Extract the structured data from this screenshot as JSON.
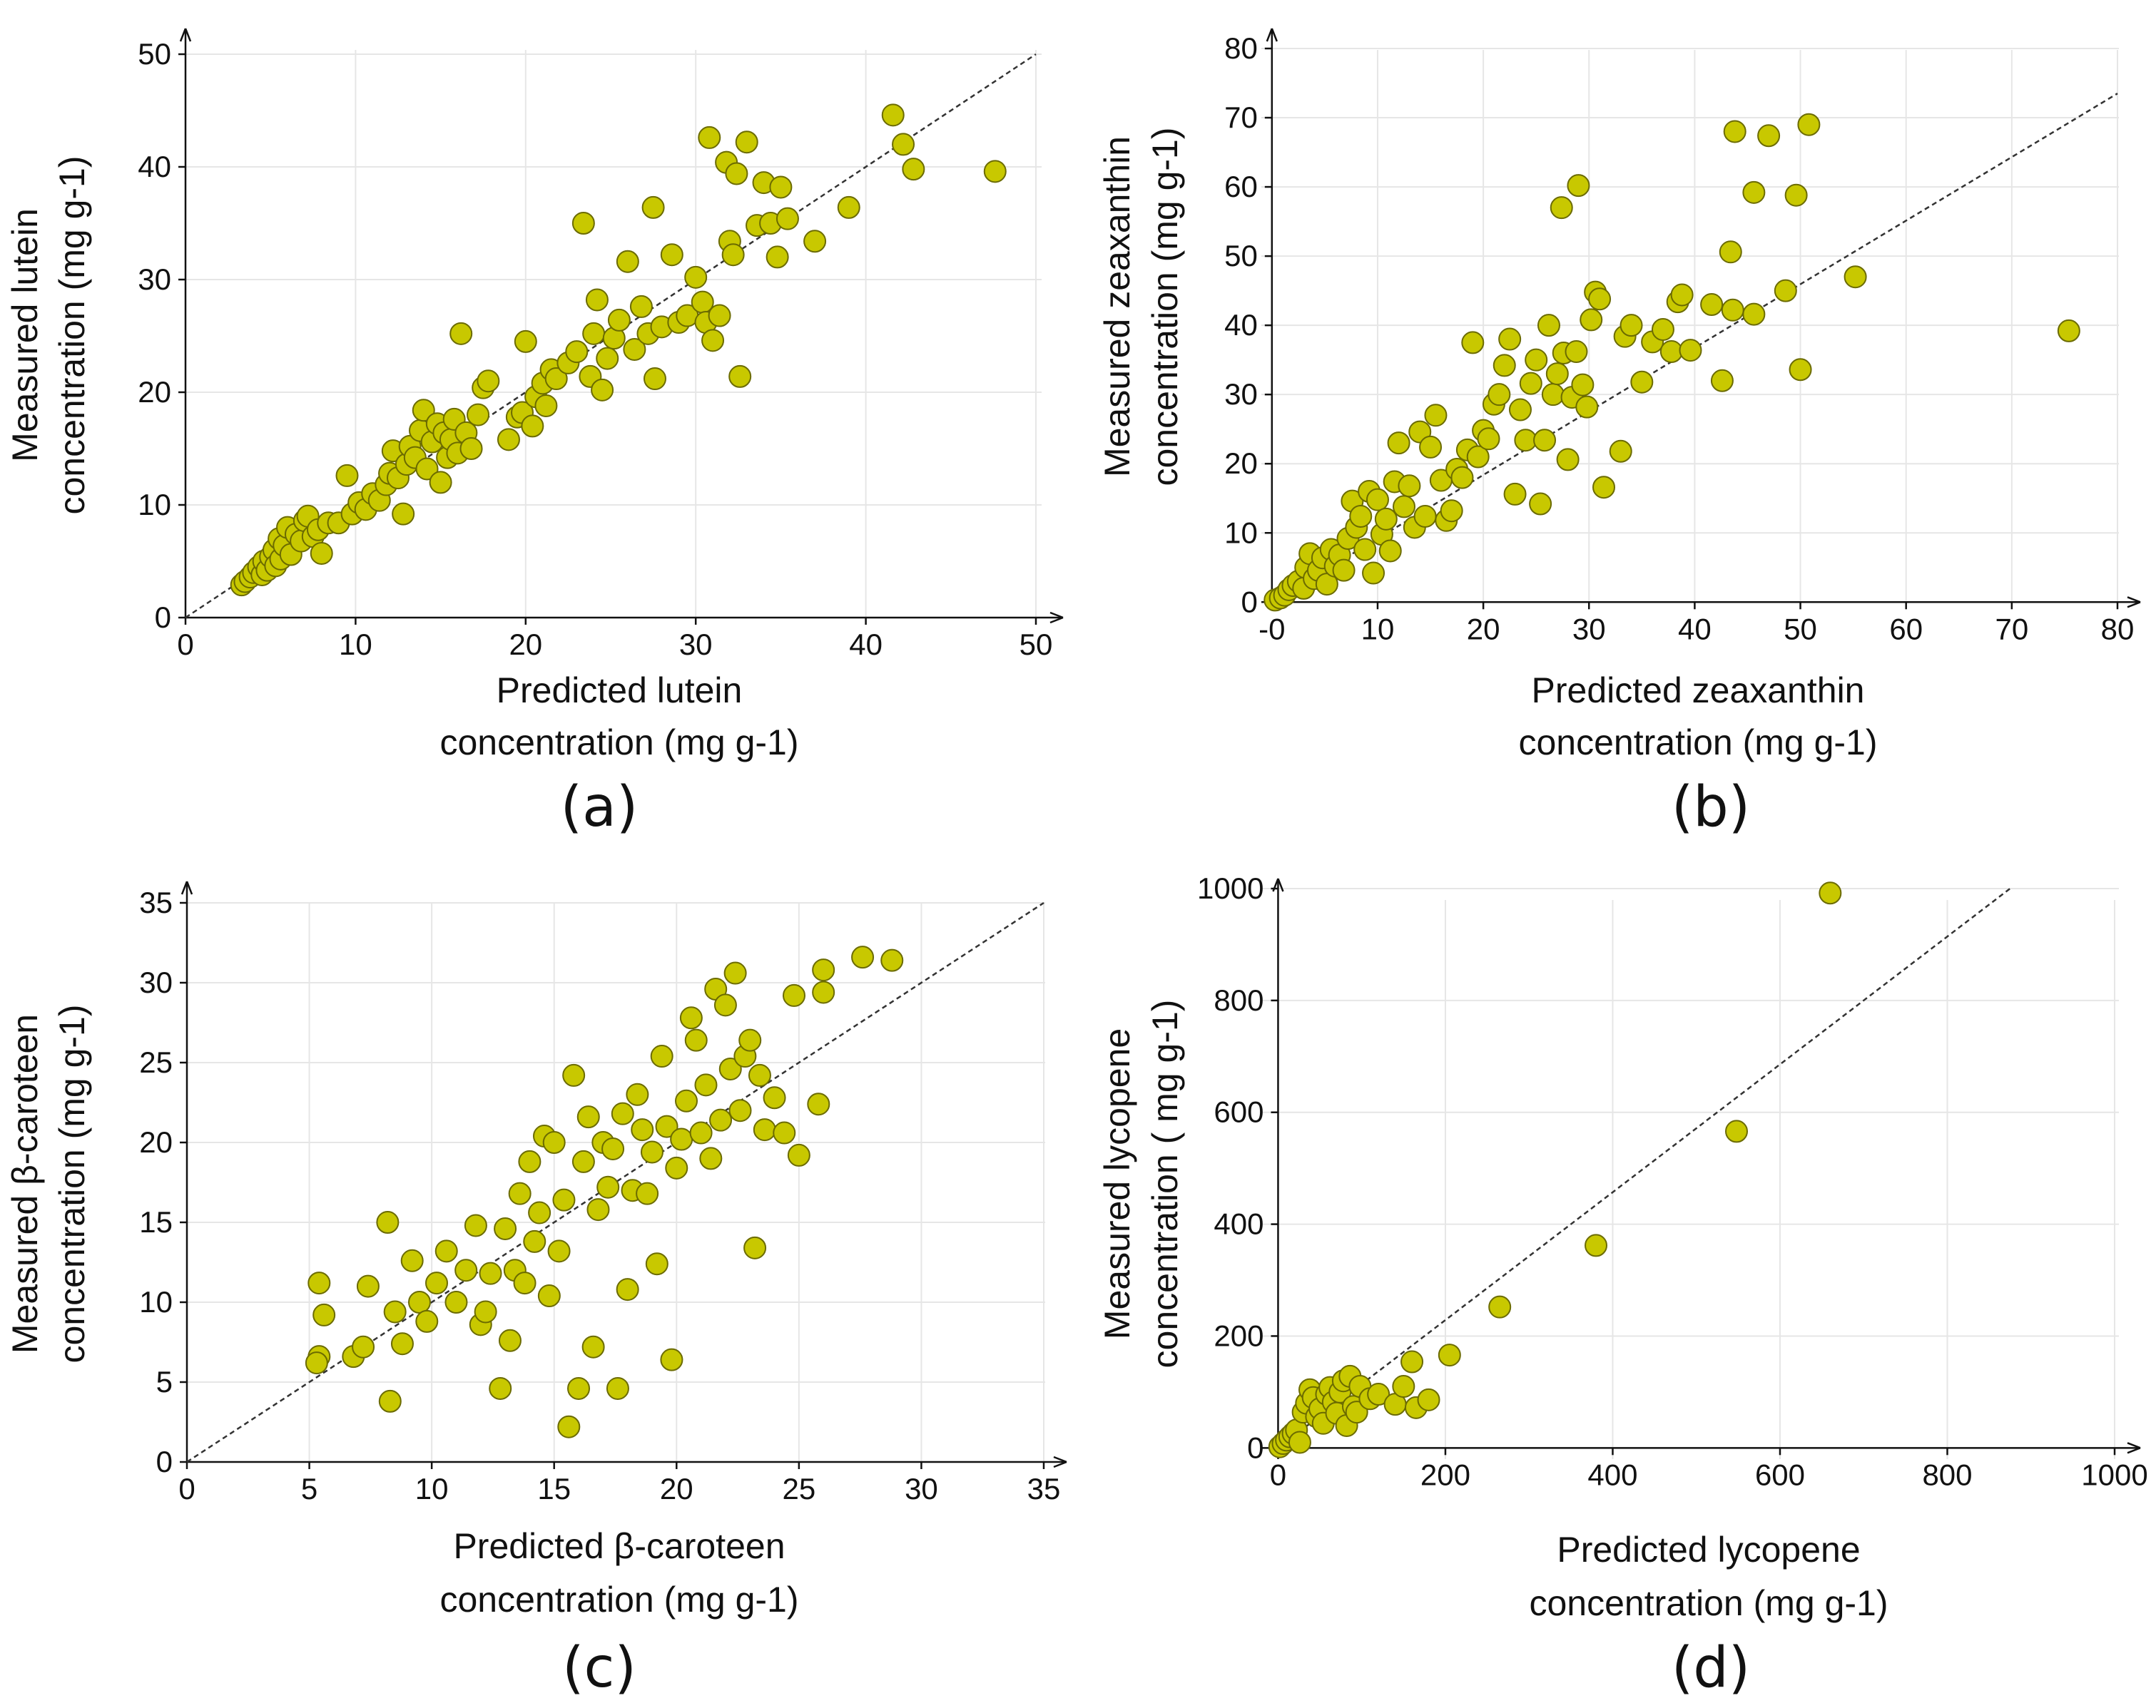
{
  "chart_data": [
    {
      "type": "scatter",
      "panel_label": "(a)",
      "xlabel": "Predicted lutein",
      "xlabel_line2": "concentration (mg g-1)",
      "ylabel": "Measured lutein",
      "ylabel_line2": "concentration (mg g-1)",
      "xlim": [
        0,
        50
      ],
      "ylim": [
        0,
        50
      ],
      "xticks": [
        0,
        10,
        20,
        30,
        40,
        50
      ],
      "yticks": [
        0,
        10,
        20,
        30,
        40,
        50
      ],
      "grid": true,
      "marker_color": "#c8c800",
      "fit_line": [
        [
          0,
          0
        ],
        [
          50,
          50
        ]
      ],
      "points": [
        [
          3.3,
          2.9
        ],
        [
          3.5,
          3.2
        ],
        [
          3.8,
          3.6
        ],
        [
          4,
          4
        ],
        [
          4.3,
          4.5
        ],
        [
          4.5,
          3.8
        ],
        [
          4.6,
          5
        ],
        [
          4.8,
          4.2
        ],
        [
          5,
          5.4
        ],
        [
          5.2,
          6
        ],
        [
          5.3,
          4.6
        ],
        [
          5.5,
          7
        ],
        [
          5.6,
          5.2
        ],
        [
          5.8,
          6.4
        ],
        [
          6,
          8
        ],
        [
          6.2,
          5.6
        ],
        [
          6.5,
          7.4
        ],
        [
          6.8,
          6.8
        ],
        [
          7,
          8.6
        ],
        [
          7.2,
          9
        ],
        [
          7.5,
          7.2
        ],
        [
          7.8,
          7.8
        ],
        [
          8,
          5.7
        ],
        [
          8.4,
          8.4
        ],
        [
          9,
          8.4
        ],
        [
          9.5,
          12.6
        ],
        [
          9.8,
          9.2
        ],
        [
          10.2,
          10.2
        ],
        [
          10.6,
          9.6
        ],
        [
          11,
          11
        ],
        [
          11.4,
          10.4
        ],
        [
          11.8,
          11.8
        ],
        [
          12,
          12.8
        ],
        [
          12.2,
          14.8
        ],
        [
          12.5,
          12.4
        ],
        [
          12.8,
          9.2
        ],
        [
          13,
          13.6
        ],
        [
          13.2,
          15.2
        ],
        [
          13.5,
          14.2
        ],
        [
          13.8,
          16.6
        ],
        [
          14,
          18.4
        ],
        [
          14.2,
          13.2
        ],
        [
          14.5,
          15.6
        ],
        [
          14.8,
          17.2
        ],
        [
          15,
          12
        ],
        [
          15.2,
          16.4
        ],
        [
          15.4,
          14.2
        ],
        [
          15.6,
          15.8
        ],
        [
          15.8,
          17.6
        ],
        [
          16,
          14.6
        ],
        [
          16.2,
          25.2
        ],
        [
          16.5,
          16.4
        ],
        [
          16.8,
          15
        ],
        [
          17.2,
          18
        ],
        [
          17.5,
          20.4
        ],
        [
          17.8,
          21
        ],
        [
          19,
          15.8
        ],
        [
          19.5,
          17.8
        ],
        [
          19.8,
          18.2
        ],
        [
          20,
          24.5
        ],
        [
          20.4,
          17
        ],
        [
          20.6,
          19.6
        ],
        [
          21,
          20.8
        ],
        [
          21.2,
          18.8
        ],
        [
          21.5,
          22
        ],
        [
          21.8,
          21.2
        ],
        [
          22.5,
          22.6
        ],
        [
          23,
          23.6
        ],
        [
          23.4,
          35
        ],
        [
          23.8,
          21.4
        ],
        [
          24,
          25.2
        ],
        [
          24.2,
          28.2
        ],
        [
          24.5,
          20.2
        ],
        [
          24.8,
          23
        ],
        [
          25.2,
          24.8
        ],
        [
          25.5,
          26.4
        ],
        [
          26,
          31.6
        ],
        [
          26.4,
          23.8
        ],
        [
          26.8,
          27.6
        ],
        [
          27.2,
          25.2
        ],
        [
          27.5,
          36.4
        ],
        [
          27.6,
          21.2
        ],
        [
          28,
          25.8
        ],
        [
          28.6,
          32.2
        ],
        [
          29,
          26.2
        ],
        [
          29.5,
          26.8
        ],
        [
          30,
          30.2
        ],
        [
          30.4,
          28
        ],
        [
          30.6,
          26.2
        ],
        [
          30.8,
          42.6
        ],
        [
          31,
          24.6
        ],
        [
          31.4,
          26.8
        ],
        [
          31.8,
          40.4
        ],
        [
          32,
          33.4
        ],
        [
          32.2,
          32.2
        ],
        [
          32.4,
          39.4
        ],
        [
          32.6,
          21.4
        ],
        [
          33,
          42.2
        ],
        [
          33.6,
          34.8
        ],
        [
          34,
          38.6
        ],
        [
          34.4,
          35
        ],
        [
          34.8,
          32
        ],
        [
          35,
          38.2
        ],
        [
          35.4,
          35.4
        ],
        [
          37,
          33.4
        ],
        [
          39,
          36.4
        ],
        [
          41.6,
          44.6
        ],
        [
          42.2,
          42
        ],
        [
          42.8,
          39.8
        ],
        [
          47.6,
          39.6
        ]
      ]
    },
    {
      "type": "scatter",
      "panel_label": "(b)",
      "xlabel": "Predicted zeaxanthin",
      "xlabel_line2": "concentration (mg g-1)",
      "ylabel": "Measured zeaxanthin",
      "ylabel_line2": "concentration (mg g-1)",
      "xlim": [
        -1,
        80
      ],
      "ylim": [
        -1,
        80
      ],
      "xticks": [
        0,
        10,
        20,
        30,
        40,
        50,
        60,
        70,
        80
      ],
      "xtick_labels": [
        "-0",
        "10",
        "20",
        "30",
        "40",
        "50",
        "60",
        "70",
        "80"
      ],
      "yticks": [
        0,
        10,
        20,
        30,
        40,
        50,
        60,
        70,
        80
      ],
      "grid": true,
      "marker_color": "#c8c800",
      "fit_line": [
        [
          0,
          0
        ],
        [
          80,
          73.5
        ]
      ],
      "points": [
        [
          0.3,
          0.3
        ],
        [
          0.8,
          0.6
        ],
        [
          1.2,
          1
        ],
        [
          1.6,
          1.8
        ],
        [
          2,
          2.4
        ],
        [
          2.5,
          3
        ],
        [
          3,
          2
        ],
        [
          3.2,
          5
        ],
        [
          3.6,
          7
        ],
        [
          4,
          3.4
        ],
        [
          4.4,
          4.6
        ],
        [
          4.8,
          6.4
        ],
        [
          5.2,
          2.6
        ],
        [
          5.6,
          7.6
        ],
        [
          6,
          5.2
        ],
        [
          6.4,
          6.8
        ],
        [
          6.8,
          4.6
        ],
        [
          7.2,
          9.2
        ],
        [
          7.6,
          14.6
        ],
        [
          8,
          10.8
        ],
        [
          8.4,
          12.4
        ],
        [
          8.8,
          7.6
        ],
        [
          9.2,
          16
        ],
        [
          9.6,
          4.2
        ],
        [
          10,
          14.8
        ],
        [
          10.4,
          9.8
        ],
        [
          10.8,
          12
        ],
        [
          11.2,
          7.4
        ],
        [
          11.6,
          17.4
        ],
        [
          12,
          23
        ],
        [
          12.5,
          13.8
        ],
        [
          13,
          16.8
        ],
        [
          13.5,
          10.8
        ],
        [
          14,
          24.6
        ],
        [
          14.5,
          12.4
        ],
        [
          15,
          22.4
        ],
        [
          15.5,
          27
        ],
        [
          16,
          17.6
        ],
        [
          16.5,
          11.8
        ],
        [
          17,
          13.2
        ],
        [
          17.5,
          19.2
        ],
        [
          18,
          18
        ],
        [
          18.5,
          22
        ],
        [
          19,
          37.5
        ],
        [
          19.5,
          21
        ],
        [
          20,
          24.8
        ],
        [
          20.5,
          23.6
        ],
        [
          21,
          28.6
        ],
        [
          21.5,
          30
        ],
        [
          22,
          34.2
        ],
        [
          22.5,
          38
        ],
        [
          23,
          15.6
        ],
        [
          23.5,
          27.8
        ],
        [
          24,
          23.4
        ],
        [
          24.5,
          31.6
        ],
        [
          25,
          35
        ],
        [
          25.4,
          14.2
        ],
        [
          25.8,
          23.4
        ],
        [
          26.2,
          40
        ],
        [
          26.6,
          30
        ],
        [
          27,
          33
        ],
        [
          27.4,
          57
        ],
        [
          27.6,
          36
        ],
        [
          28,
          20.6
        ],
        [
          28.4,
          29.6
        ],
        [
          28.8,
          36.2
        ],
        [
          29,
          60.2
        ],
        [
          29.4,
          31.4
        ],
        [
          29.8,
          28.2
        ],
        [
          30.2,
          40.8
        ],
        [
          30.6,
          44.8
        ],
        [
          31,
          43.8
        ],
        [
          31.4,
          16.6
        ],
        [
          33,
          21.8
        ],
        [
          33.4,
          38.4
        ],
        [
          34,
          40
        ],
        [
          35,
          31.8
        ],
        [
          36,
          37.6
        ],
        [
          37,
          39.4
        ],
        [
          37.8,
          36.2
        ],
        [
          38.4,
          43.4
        ],
        [
          38.8,
          44.4
        ],
        [
          39.6,
          36.4
        ],
        [
          41.6,
          43
        ],
        [
          42.6,
          32
        ],
        [
          43.4,
          50.6
        ],
        [
          43.6,
          42.2
        ],
        [
          45.6,
          41.6
        ],
        [
          45.6,
          59.2
        ],
        [
          43.8,
          68
        ],
        [
          47,
          67.4
        ],
        [
          48.6,
          45
        ],
        [
          49.6,
          58.8
        ],
        [
          50,
          33.6
        ],
        [
          50.8,
          69
        ],
        [
          55.2,
          47
        ],
        [
          75.4,
          39.2
        ]
      ]
    },
    {
      "type": "scatter",
      "panel_label": "(c)",
      "xlabel": "Predicted β-caroteen",
      "xlabel_line2": "concentration (mg g-1)",
      "ylabel": "Measured β-caroteen",
      "ylabel_line2": "concentration (mg g-1)",
      "xlim": [
        0,
        35
      ],
      "ylim": [
        0,
        35
      ],
      "xticks": [
        0,
        5,
        10,
        15,
        20,
        25,
        30,
        35
      ],
      "yticks": [
        0,
        5,
        10,
        15,
        20,
        25,
        30,
        35
      ],
      "grid": true,
      "marker_color": "#c8c800",
      "fit_line": [
        [
          0,
          0
        ],
        [
          35,
          35
        ]
      ],
      "points": [
        [
          5.4,
          11.2
        ],
        [
          5.6,
          9.2
        ],
        [
          5.4,
          6.6
        ],
        [
          5.3,
          6.2
        ],
        [
          6.8,
          6.6
        ],
        [
          7.2,
          7.2
        ],
        [
          7.4,
          11
        ],
        [
          8.2,
          15
        ],
        [
          8.3,
          3.8
        ],
        [
          8.5,
          9.4
        ],
        [
          8.8,
          7.4
        ],
        [
          9.2,
          12.6
        ],
        [
          9.5,
          10
        ],
        [
          9.8,
          8.8
        ],
        [
          10.2,
          11.2
        ],
        [
          10.6,
          13.2
        ],
        [
          11,
          10
        ],
        [
          11.4,
          12
        ],
        [
          11.8,
          14.8
        ],
        [
          12,
          8.6
        ],
        [
          12.2,
          9.4
        ],
        [
          12.4,
          11.8
        ],
        [
          12.8,
          4.6
        ],
        [
          13,
          14.6
        ],
        [
          13.2,
          7.6
        ],
        [
          13.4,
          12
        ],
        [
          13.6,
          16.8
        ],
        [
          13.8,
          11.2
        ],
        [
          14,
          18.8
        ],
        [
          14.2,
          13.8
        ],
        [
          14.4,
          15.6
        ],
        [
          14.6,
          20.4
        ],
        [
          14.8,
          10.4
        ],
        [
          15,
          20
        ],
        [
          15.2,
          13.2
        ],
        [
          15.4,
          16.4
        ],
        [
          15.6,
          2.2
        ],
        [
          15.8,
          24.2
        ],
        [
          16,
          4.6
        ],
        [
          16.2,
          18.8
        ],
        [
          16.4,
          21.6
        ],
        [
          16.6,
          7.2
        ],
        [
          16.8,
          15.8
        ],
        [
          17,
          20
        ],
        [
          17.2,
          17.2
        ],
        [
          17.4,
          19.6
        ],
        [
          17.6,
          4.6
        ],
        [
          17.8,
          21.8
        ],
        [
          18,
          10.8
        ],
        [
          18.2,
          17
        ],
        [
          18.4,
          23
        ],
        [
          18.6,
          20.8
        ],
        [
          18.8,
          16.8
        ],
        [
          19,
          19.4
        ],
        [
          19.2,
          12.4
        ],
        [
          19.4,
          25.4
        ],
        [
          19.6,
          21
        ],
        [
          19.8,
          6.4
        ],
        [
          20,
          18.4
        ],
        [
          20.2,
          20.2
        ],
        [
          20.4,
          22.6
        ],
        [
          20.6,
          27.8
        ],
        [
          20.8,
          26.4
        ],
        [
          21,
          20.6
        ],
        [
          21.2,
          23.6
        ],
        [
          21.4,
          19
        ],
        [
          21.6,
          29.6
        ],
        [
          21.8,
          21.4
        ],
        [
          22,
          28.6
        ],
        [
          22.2,
          24.6
        ],
        [
          22.4,
          30.6
        ],
        [
          22.6,
          22
        ],
        [
          22.8,
          25.4
        ],
        [
          23,
          26.4
        ],
        [
          23.2,
          13.4
        ],
        [
          23.4,
          24.2
        ],
        [
          23.6,
          20.8
        ],
        [
          24,
          22.8
        ],
        [
          24.4,
          20.6
        ],
        [
          24.8,
          29.2
        ],
        [
          25,
          19.2
        ],
        [
          25.8,
          22.4
        ],
        [
          26,
          30.8
        ],
        [
          26,
          29.4
        ],
        [
          27.6,
          31.6
        ],
        [
          28.8,
          31.4
        ]
      ]
    },
    {
      "type": "scatter",
      "panel_label": "(d)",
      "xlabel": "Predicted lycopene",
      "xlabel_line2": "concentration (mg g-1)",
      "ylabel": "Measured lycopene",
      "ylabel_line2": "concentration ( mg g-1)",
      "xlim": [
        -20,
        1000
      ],
      "ylim": [
        -20,
        1000
      ],
      "xticks": [
        0,
        200,
        400,
        600,
        800,
        1000
      ],
      "yticks": [
        0,
        200,
        400,
        600,
        800,
        1000
      ],
      "grid": true,
      "marker_color": "#c8c800",
      "fit_line": [
        [
          0,
          0
        ],
        [
          875,
          1000
        ]
      ],
      "points": [
        [
          2,
          2
        ],
        [
          6,
          8
        ],
        [
          10,
          14
        ],
        [
          14,
          20
        ],
        [
          18,
          26
        ],
        [
          22,
          32
        ],
        [
          26,
          10
        ],
        [
          30,
          64
        ],
        [
          34,
          80
        ],
        [
          38,
          104
        ],
        [
          42,
          90
        ],
        [
          46,
          56
        ],
        [
          50,
          70
        ],
        [
          54,
          44
        ],
        [
          58,
          96
        ],
        [
          62,
          108
        ],
        [
          66,
          82
        ],
        [
          70,
          62
        ],
        [
          74,
          100
        ],
        [
          78,
          120
        ],
        [
          82,
          40
        ],
        [
          86,
          128
        ],
        [
          90,
          74
        ],
        [
          94,
          64
        ],
        [
          98,
          110
        ],
        [
          110,
          88
        ],
        [
          120,
          96
        ],
        [
          140,
          78
        ],
        [
          150,
          110
        ],
        [
          160,
          154
        ],
        [
          165,
          72
        ],
        [
          180,
          86
        ],
        [
          205,
          166
        ],
        [
          265,
          252
        ],
        [
          380,
          362
        ],
        [
          548,
          566
        ],
        [
          660,
          992
        ]
      ]
    }
  ]
}
